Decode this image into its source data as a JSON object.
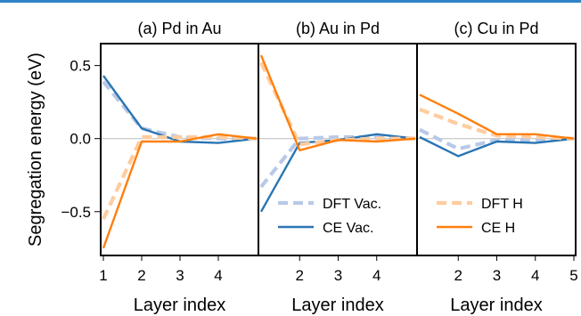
{
  "chart_data": {
    "type": "line",
    "ylabel": "Segregation energy (eV)",
    "ylim": [
      -0.8,
      0.65
    ],
    "yticks": [
      0.5,
      0.0,
      -0.5
    ],
    "ytick_labels": [
      "0.5",
      "0.0",
      "−0.5"
    ],
    "grid": false,
    "reference_line_y": 0.0,
    "series_styles": [
      {
        "name": "DFT Vac.",
        "color": "#b8c9e8",
        "dash": "dashed",
        "method": "DFT",
        "env": "Vac."
      },
      {
        "name": "CE Vac.",
        "color": "#2a75b3",
        "dash": "solid",
        "method": "CE",
        "env": "Vac."
      },
      {
        "name": "DFT H",
        "color": "#ffcc9e",
        "dash": "dashed",
        "method": "DFT",
        "env": "H"
      },
      {
        "name": "CE H",
        "color": "#ff7f0e",
        "dash": "solid",
        "method": "CE",
        "env": "H"
      }
    ],
    "panels": [
      {
        "title": "(a) Pd in Au",
        "xlabel": "Layer index",
        "x": [
          1,
          2,
          3,
          4,
          5
        ],
        "xticks": [
          1,
          2,
          3,
          4
        ],
        "legend": null,
        "series": [
          {
            "name": "DFT Vac.",
            "values": [
              0.39,
              0.07,
              0.01,
              0.0,
              0.0
            ]
          },
          {
            "name": "CE Vac.",
            "values": [
              0.43,
              0.07,
              -0.02,
              -0.03,
              0.0
            ]
          },
          {
            "name": "DFT H",
            "values": [
              -0.55,
              0.01,
              0.01,
              0.01,
              0.0
            ]
          },
          {
            "name": "CE H",
            "values": [
              -0.75,
              -0.02,
              -0.02,
              0.03,
              0.0
            ]
          }
        ]
      },
      {
        "title": "(b) Au in Pd",
        "xlabel": "Layer index",
        "x": [
          1,
          2,
          3,
          4,
          5
        ],
        "xticks": [
          2,
          3,
          4
        ],
        "legend": {
          "entries": [
            "DFT Vac.",
            "CE Vac."
          ],
          "position": "lower-right"
        },
        "series": [
          {
            "name": "DFT Vac.",
            "values": [
              -0.33,
              0.0,
              0.01,
              0.01,
              0.0
            ]
          },
          {
            "name": "CE Vac.",
            "values": [
              -0.5,
              -0.03,
              -0.01,
              0.03,
              0.0
            ]
          },
          {
            "name": "DFT H",
            "values": [
              0.52,
              -0.04,
              -0.01,
              0.0,
              0.0
            ]
          },
          {
            "name": "CE H",
            "values": [
              0.57,
              -0.08,
              -0.01,
              -0.02,
              0.0
            ]
          }
        ]
      },
      {
        "title": "(c) Cu in Pd",
        "xlabel": "Layer index",
        "x": [
          1,
          2,
          3,
          4,
          5
        ],
        "xticks": [
          2,
          3,
          4,
          5
        ],
        "legend": {
          "entries": [
            "DFT H",
            "CE H"
          ],
          "position": "lower-right"
        },
        "series": [
          {
            "name": "DFT Vac.",
            "values": [
              0.06,
              -0.07,
              -0.01,
              -0.01,
              0.0
            ]
          },
          {
            "name": "CE Vac.",
            "values": [
              0.01,
              -0.12,
              -0.02,
              -0.03,
              0.0
            ]
          },
          {
            "name": "DFT H",
            "values": [
              0.2,
              0.1,
              0.02,
              0.01,
              0.0
            ]
          },
          {
            "name": "CE H",
            "values": [
              0.3,
              0.17,
              0.03,
              0.03,
              0.0
            ]
          }
        ]
      }
    ]
  }
}
